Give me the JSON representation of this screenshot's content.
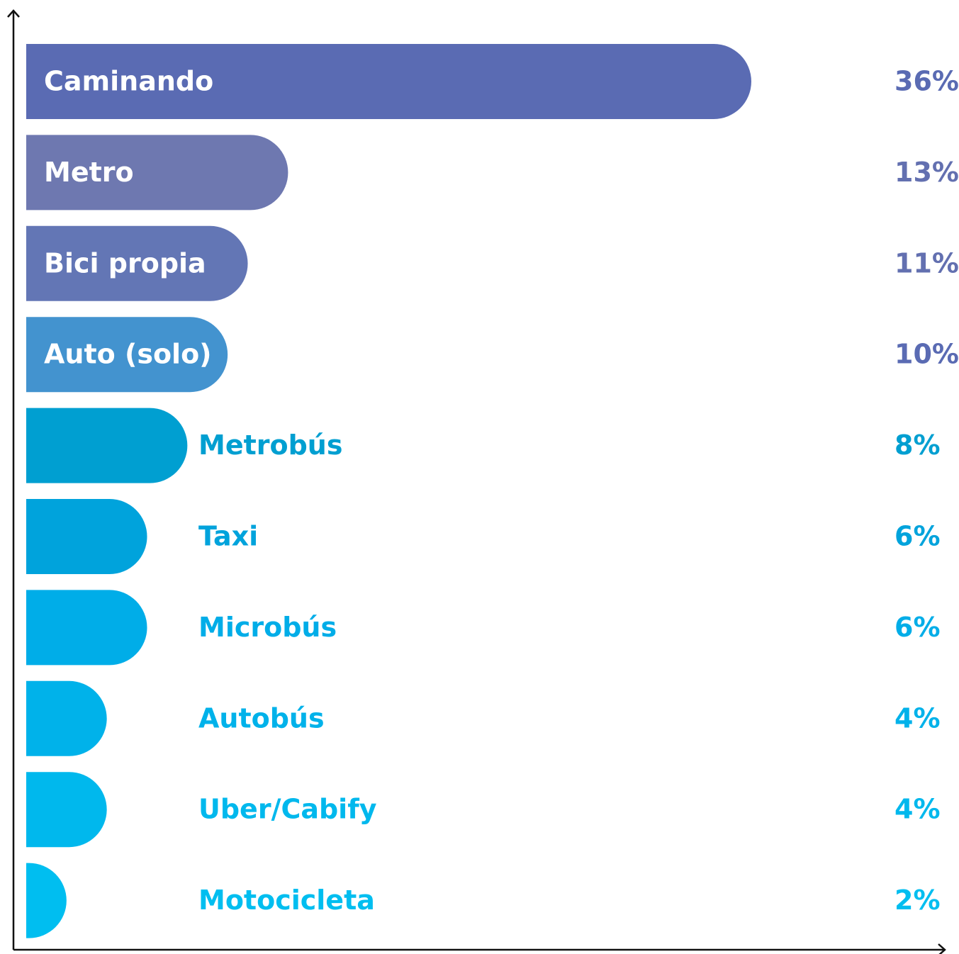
{
  "chart_data": {
    "type": "bar",
    "orientation": "horizontal",
    "categories": [
      "Caminando",
      "Metro",
      "Bici propia",
      "Auto (solo)",
      "Metrobús",
      "Taxi",
      "Microbús",
      "Autobús",
      "Uber/Cabify",
      "Motocicleta"
    ],
    "values": [
      36,
      13,
      11,
      10,
      8,
      6,
      6,
      4,
      4,
      2
    ],
    "value_labels": [
      "36%",
      "13%",
      "11%",
      "10%",
      "8%",
      "6%",
      "6%",
      "4%",
      "4%",
      "2%"
    ],
    "colors": [
      "#5a6bb3",
      "#6e78b0",
      "#6376b5",
      "#4393cf",
      "#009fd1",
      "#00a3dc",
      "#00ade8",
      "#00b2ea",
      "#00b8ed",
      "#00bef0"
    ],
    "value_label_colors": [
      "#5a6bb3",
      "#6370b0",
      "#6370b0",
      "#5a6bb3",
      "#009fd1",
      "#00a3dc",
      "#00ade8",
      "#00b2ea",
      "#00b8ed",
      "#00bef0"
    ],
    "xlim": [
      0,
      36
    ]
  }
}
